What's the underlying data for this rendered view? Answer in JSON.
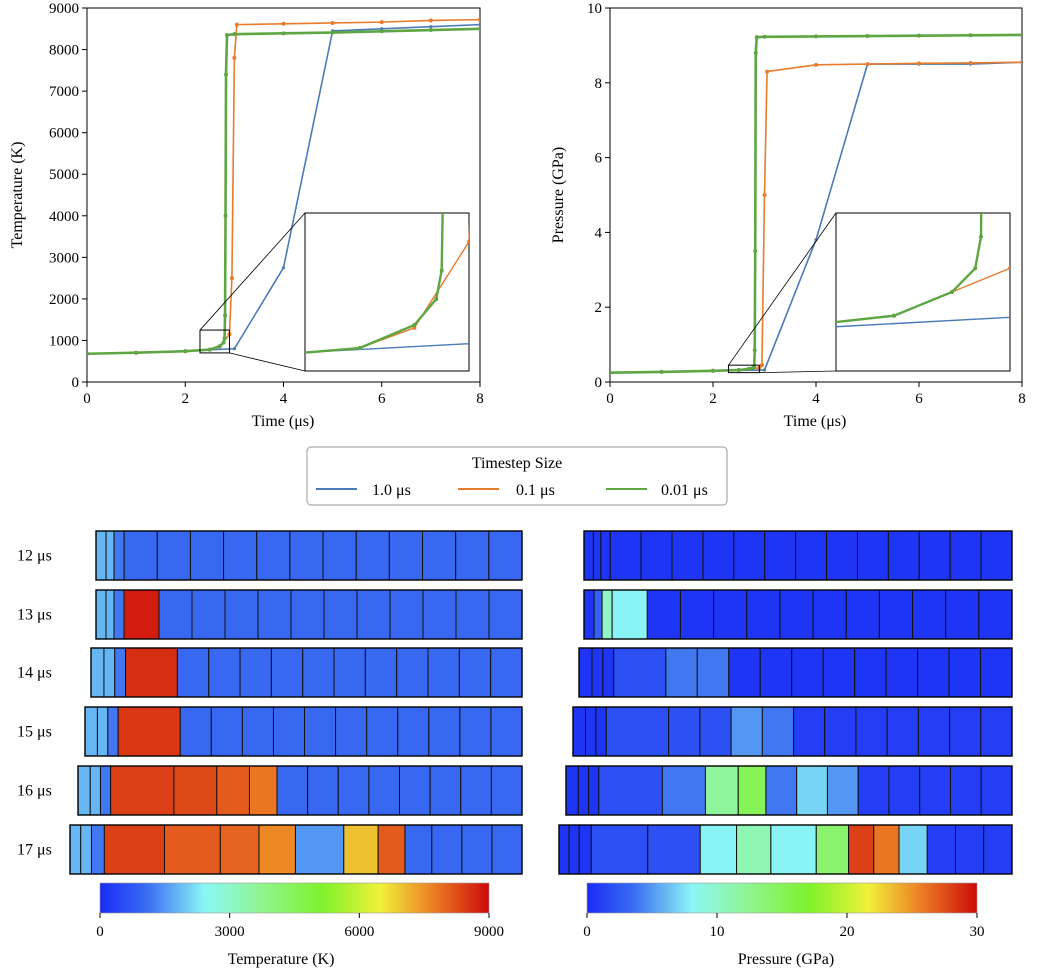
{
  "legend": {
    "title": "Timestep Size",
    "entries": [
      {
        "label": "1.0 μs",
        "color": "#4a7bb7"
      },
      {
        "label": "0.1 μs",
        "color": "#e87b2c"
      },
      {
        "label": "0.01 μs",
        "color": "#5ea643"
      }
    ]
  },
  "chart_data": [
    {
      "type": "line",
      "xlabel": "Time (μs)",
      "ylabel": "Temperature (K)",
      "xlim": [
        0,
        8
      ],
      "ylim": [
        0,
        9000
      ],
      "xticks": [
        0,
        2,
        4,
        6,
        8
      ],
      "yticks": [
        0,
        1000,
        2000,
        3000,
        4000,
        5000,
        6000,
        7000,
        8000,
        9000
      ],
      "inset": {
        "xlim": [
          2.3,
          2.9
        ],
        "ylim": [
          700,
          1250
        ]
      },
      "series": [
        {
          "name": "1.0 μs",
          "x": [
            0,
            1,
            2,
            3,
            4,
            5,
            6,
            7,
            8
          ],
          "y": [
            680,
            700,
            750,
            800,
            2750,
            8450,
            8500,
            8550,
            8600
          ]
        },
        {
          "name": "0.1 μs",
          "x": [
            0,
            1,
            2,
            2.5,
            2.7,
            2.9,
            2.95,
            3.0,
            3.05,
            4,
            5,
            6,
            7,
            8
          ],
          "y": [
            680,
            705,
            740,
            780,
            850,
            1150,
            2500,
            7800,
            8600,
            8620,
            8640,
            8660,
            8700,
            8720
          ]
        },
        {
          "name": "0.01 μs",
          "x": [
            0,
            1,
            2,
            2.5,
            2.7,
            2.78,
            2.8,
            2.81,
            2.82,
            2.83,
            2.85,
            3,
            4,
            5,
            6,
            7,
            8
          ],
          "y": [
            680,
            705,
            740,
            780,
            860,
            950,
            1050,
            1600,
            4000,
            7400,
            8350,
            8370,
            8390,
            8410,
            8440,
            8470,
            8500
          ]
        }
      ]
    },
    {
      "type": "line",
      "xlabel": "Time (μs)",
      "ylabel": "Pressure (GPa)",
      "xlim": [
        0,
        8
      ],
      "ylim": [
        0,
        10
      ],
      "xticks": [
        0,
        2,
        4,
        6,
        8
      ],
      "yticks": [
        0,
        2,
        4,
        6,
        8,
        10
      ],
      "inset": {
        "xlim": [
          2.3,
          2.9
        ],
        "ylim": [
          0.25,
          0.45
        ]
      },
      "series": [
        {
          "name": "1.0 μs",
          "x": [
            0,
            1,
            2,
            3,
            4,
            5,
            6,
            7,
            8
          ],
          "y": [
            0.25,
            0.27,
            0.3,
            0.32,
            3.8,
            8.5,
            8.5,
            8.5,
            8.55
          ]
        },
        {
          "name": "0.1 μs",
          "x": [
            0,
            1,
            2,
            2.5,
            2.7,
            2.9,
            2.95,
            3.0,
            3.05,
            4,
            5,
            6,
            7,
            8
          ],
          "y": [
            0.25,
            0.27,
            0.3,
            0.32,
            0.35,
            0.38,
            0.45,
            5.0,
            8.3,
            8.48,
            8.5,
            8.52,
            8.53,
            8.55
          ]
        },
        {
          "name": "0.01 μs",
          "x": [
            0,
            1,
            2,
            2.5,
            2.7,
            2.78,
            2.8,
            2.81,
            2.82,
            2.83,
            2.85,
            3,
            4,
            5,
            6,
            7,
            8
          ],
          "y": [
            0.25,
            0.27,
            0.3,
            0.32,
            0.35,
            0.38,
            0.42,
            0.85,
            3.5,
            8.8,
            9.22,
            9.23,
            9.24,
            9.25,
            9.26,
            9.27,
            9.28
          ]
        }
      ]
    },
    {
      "type": "heatmap",
      "xlabel": "Temperature (K)",
      "colorbar": {
        "min": 0,
        "max": 9000,
        "ticks": [
          0,
          3000,
          6000,
          9000
        ]
      },
      "rows": [
        {
          "label": "12 μs",
          "values": [
            1800,
            1800,
            1200,
            1000,
            1000,
            1000,
            1000,
            1000,
            1000,
            1000,
            1000,
            1000,
            1000,
            1000,
            1000
          ]
        },
        {
          "label": "13 μs",
          "values": [
            1800,
            1800,
            1200,
            8800,
            1000,
            1000,
            1000,
            1000,
            1000,
            1000,
            1000,
            1000,
            1000,
            1000,
            1000
          ]
        },
        {
          "label": "14 μs",
          "values": [
            1800,
            1800,
            1200,
            8600,
            1000,
            1000,
            1000,
            1000,
            1000,
            1000,
            1000,
            1000,
            1000,
            1000,
            1000
          ]
        },
        {
          "label": "15 μs",
          "values": [
            1800,
            1800,
            1200,
            8500,
            1000,
            1000,
            1000,
            1000,
            1000,
            1000,
            1000,
            1000,
            1000,
            1000,
            1000
          ]
        },
        {
          "label": "16 μs",
          "values": [
            1800,
            1800,
            1200,
            8400,
            8300,
            8100,
            7800,
            1000,
            1000,
            1000,
            1000,
            1000,
            1000,
            1000,
            1000
          ]
        },
        {
          "label": "17 μs",
          "values": [
            1800,
            1800,
            1200,
            8400,
            8100,
            8000,
            7600,
            1500,
            7000,
            8100,
            1000,
            1000,
            1000,
            1000
          ]
        }
      ]
    },
    {
      "type": "heatmap",
      "xlabel": "Pressure (GPa)",
      "colorbar": {
        "min": 0,
        "max": 30,
        "ticks": [
          0,
          10,
          20,
          30
        ]
      },
      "rows": [
        {
          "label": "12 μs",
          "values": [
            0.5,
            0.5,
            0.5,
            0.5,
            0.5,
            0.5,
            0.5,
            0.5,
            0.5,
            0.5,
            0.5,
            0.5,
            0.5,
            0.5,
            0.5,
            0.5
          ]
        },
        {
          "label": "13 μs",
          "values": [
            0.5,
            3,
            10,
            8,
            0.5,
            0.5,
            0.5,
            0.5,
            0.5,
            0.5,
            0.5,
            0.5,
            0.5,
            0.5,
            0.5
          ]
        },
        {
          "label": "14 μs",
          "values": [
            0.5,
            0.5,
            0.5,
            2,
            4,
            4,
            0.5,
            0.5,
            0.5,
            0.5,
            0.5,
            0.5,
            0.5,
            0.5,
            0.5
          ]
        },
        {
          "label": "15 μs",
          "values": [
            0.5,
            0.5,
            0.5,
            2,
            2,
            2,
            5,
            4,
            1,
            1,
            1,
            1,
            1,
            1,
            1
          ]
        },
        {
          "label": "16 μs",
          "values": [
            0.5,
            0.5,
            0.5,
            2,
            4,
            12,
            15,
            4,
            7,
            5,
            1,
            1,
            1,
            1,
            1
          ]
        },
        {
          "label": "17 μs",
          "values": [
            0.5,
            0.5,
            0.5,
            2,
            2,
            8,
            11,
            8,
            14,
            28,
            26,
            7,
            1,
            1,
            1
          ]
        }
      ]
    }
  ]
}
